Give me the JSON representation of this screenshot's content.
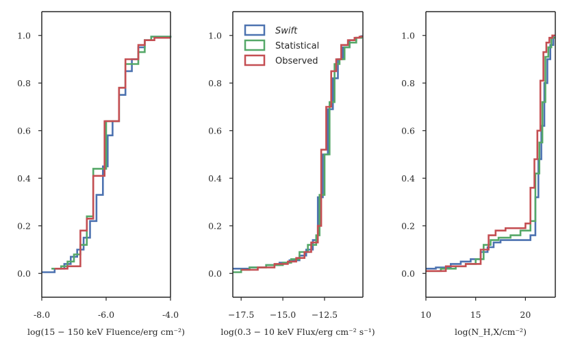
{
  "chart_data": [
    {
      "type": "step",
      "xlabel": "log(15 − 150 keV Fluence/erg cm⁻²)",
      "xlim": [
        -8.0,
        -4.0
      ],
      "ylim": [
        -0.1,
        1.1
      ],
      "xticks": [
        -8.0,
        -6.0,
        -4.0
      ],
      "xtick_labels": [
        "-8.0",
        "-6.0",
        "-4.0"
      ],
      "yticks": [
        0.0,
        0.2,
        0.4,
        0.6,
        0.8,
        1.0
      ],
      "ytick_labels": [
        "0.0",
        "0.2",
        "0.4",
        "0.6",
        "0.8",
        "1.0"
      ],
      "series": [
        {
          "name": "Swift",
          "color": "#4C72B0",
          "x": [
            -8.0,
            -7.6,
            -7.3,
            -7.1,
            -6.9,
            -6.7,
            -6.5,
            -6.3,
            -6.1,
            -5.95,
            -5.8,
            -5.6,
            -5.4,
            -5.2,
            -5.0,
            -4.8,
            -4.6,
            -4.0
          ],
          "y": [
            0.005,
            0.02,
            0.04,
            0.07,
            0.1,
            0.15,
            0.22,
            0.33,
            0.45,
            0.58,
            0.64,
            0.75,
            0.85,
            0.9,
            0.95,
            0.98,
            0.995,
            0.998
          ]
        },
        {
          "name": "Statistical",
          "color": "#55A868",
          "x": [
            -7.7,
            -7.4,
            -7.2,
            -7.0,
            -6.8,
            -6.6,
            -6.4,
            -6.2,
            -6.0,
            -5.8,
            -5.6,
            -5.4,
            -5.2,
            -5.0,
            -4.8,
            -4.6,
            -4.0
          ],
          "y": [
            0.02,
            0.03,
            0.05,
            0.08,
            0.12,
            0.24,
            0.44,
            0.44,
            0.64,
            0.64,
            0.78,
            0.88,
            0.88,
            0.93,
            0.98,
            0.995,
            0.998
          ]
        },
        {
          "name": "Observed",
          "color": "#C44E52",
          "x": [
            -7.6,
            -7.2,
            -6.8,
            -6.6,
            -6.4,
            -6.2,
            -6.05,
            -5.85,
            -5.6,
            -5.4,
            -5.2,
            -5.0,
            -4.8,
            -4.5,
            -4.0
          ],
          "y": [
            0.02,
            0.03,
            0.18,
            0.23,
            0.41,
            0.41,
            0.64,
            0.64,
            0.78,
            0.9,
            0.9,
            0.96,
            0.98,
            0.99,
            0.99
          ]
        }
      ]
    },
    {
      "type": "step",
      "xlabel": "log(0.3 − 10 keV Flux/erg cm⁻² s⁻¹)",
      "xlim": [
        -18.0,
        -10.2
      ],
      "ylim": [
        -0.1,
        1.1
      ],
      "xticks": [
        -17.5,
        -15.0,
        -12.5
      ],
      "xtick_labels": [
        "−17.5",
        "−15.0",
        "−12.5"
      ],
      "yticks": [
        0.0,
        0.2,
        0.4,
        0.6,
        0.8,
        1.0
      ],
      "ytick_labels": [
        "0.0",
        "0.2",
        "0.4",
        "0.6",
        "0.8",
        "1.0"
      ],
      "series": [
        {
          "name": "Swift",
          "color": "#4C72B0",
          "x": [
            -18.0,
            -17.0,
            -16.0,
            -15.2,
            -14.6,
            -14.0,
            -13.6,
            -13.2,
            -12.9,
            -12.6,
            -12.3,
            -12.0,
            -11.7,
            -11.4,
            -11.0,
            -10.6,
            -10.3,
            -10.2
          ],
          "y": [
            0.02,
            0.025,
            0.035,
            0.045,
            0.055,
            0.075,
            0.1,
            0.14,
            0.32,
            0.5,
            0.69,
            0.82,
            0.9,
            0.95,
            0.98,
            0.99,
            0.997,
            0.997
          ]
        },
        {
          "name": "Statistical",
          "color": "#55A868",
          "x": [
            -18.0,
            -17.5,
            -17.0,
            -16.0,
            -15.0,
            -14.5,
            -14.0,
            -13.5,
            -13.0,
            -12.8,
            -12.5,
            -12.2,
            -11.9,
            -11.6,
            -11.3,
            -11.0,
            -10.6,
            -10.3,
            -10.2
          ],
          "y": [
            0.005,
            0.015,
            0.025,
            0.035,
            0.045,
            0.06,
            0.09,
            0.12,
            0.16,
            0.33,
            0.5,
            0.72,
            0.88,
            0.9,
            0.95,
            0.97,
            0.99,
            0.995,
            0.995
          ]
        },
        {
          "name": "Observed",
          "color": "#C44E52",
          "x": [
            -17.5,
            -16.5,
            -15.5,
            -14.7,
            -14.2,
            -13.7,
            -13.3,
            -12.9,
            -12.7,
            -12.4,
            -12.1,
            -11.8,
            -11.5,
            -11.1,
            -10.7,
            -10.4,
            -10.2
          ],
          "y": [
            0.015,
            0.025,
            0.04,
            0.05,
            0.065,
            0.09,
            0.13,
            0.2,
            0.52,
            0.7,
            0.85,
            0.9,
            0.96,
            0.98,
            0.99,
            0.995,
            0.995
          ]
        }
      ]
    },
    {
      "type": "step",
      "xlabel": "log(N_H,X/cm⁻²)",
      "xlim": [
        10.0,
        23.0
      ],
      "ylim": [
        -0.1,
        1.1
      ],
      "xticks": [
        10,
        15,
        20
      ],
      "xtick_labels": [
        "10",
        "15",
        "20"
      ],
      "yticks": [
        0.0,
        0.2,
        0.4,
        0.6,
        0.8,
        1.0
      ],
      "ytick_labels": [
        "0.0",
        "0.2",
        "0.4",
        "0.6",
        "0.8",
        "1.0"
      ],
      "series": [
        {
          "name": "Swift",
          "color": "#4C72B0",
          "x": [
            10.0,
            11.0,
            12.5,
            13.5,
            14.5,
            15.5,
            16.2,
            16.8,
            17.5,
            19.0,
            20.5,
            21.0,
            21.3,
            21.6,
            21.9,
            22.2,
            22.5,
            22.8,
            23.0
          ],
          "y": [
            0.02,
            0.025,
            0.04,
            0.05,
            0.06,
            0.09,
            0.11,
            0.13,
            0.14,
            0.14,
            0.16,
            0.32,
            0.48,
            0.62,
            0.8,
            0.9,
            0.96,
            1.0,
            1.0
          ]
        },
        {
          "name": "Statistical",
          "color": "#55A868",
          "x": [
            10.0,
            11.5,
            13.0,
            14.0,
            15.0,
            15.8,
            16.5,
            17.3,
            18.5,
            19.5,
            20.5,
            21.0,
            21.4,
            21.7,
            22.0,
            22.3,
            22.6,
            23.0
          ],
          "y": [
            0.01,
            0.02,
            0.03,
            0.04,
            0.06,
            0.12,
            0.14,
            0.15,
            0.16,
            0.18,
            0.22,
            0.42,
            0.55,
            0.72,
            0.91,
            0.95,
            0.99,
            0.99
          ]
        },
        {
          "name": "Observed",
          "color": "#C44E52",
          "x": [
            10.0,
            12.0,
            14.0,
            15.5,
            16.3,
            17.0,
            18.0,
            20.0,
            20.5,
            20.9,
            21.2,
            21.5,
            21.8,
            22.1,
            22.4,
            22.7,
            23.0
          ],
          "y": [
            0.01,
            0.03,
            0.04,
            0.1,
            0.16,
            0.18,
            0.19,
            0.21,
            0.36,
            0.48,
            0.6,
            0.81,
            0.93,
            0.97,
            0.99,
            1.0,
            1.0
          ]
        }
      ]
    }
  ],
  "legend": {
    "position": "top-left of middle panel",
    "entries": [
      {
        "label": "Swift",
        "color": "#4C72B0",
        "italic": true
      },
      {
        "label": "Statistical",
        "color": "#55A868",
        "italic": false
      },
      {
        "label": "Observed",
        "color": "#C44E52",
        "italic": false
      }
    ]
  }
}
